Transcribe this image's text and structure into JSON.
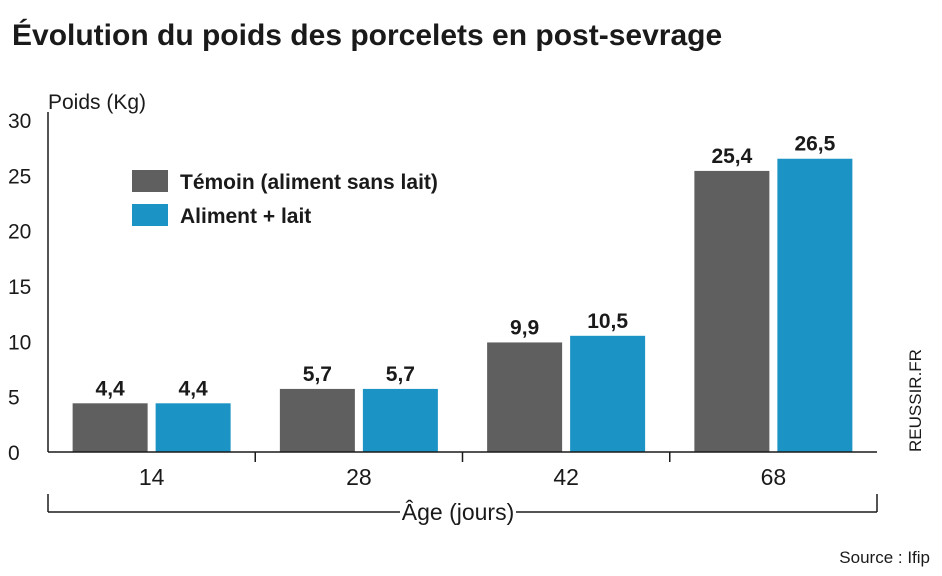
{
  "chart_data": {
    "type": "bar",
    "title": "Évolution du poids des porcelets en post-sevrage",
    "ylabel": "Poids (Kg)",
    "xlabel": "Âge (jours)",
    "categories": [
      "14",
      "28",
      "42",
      "68"
    ],
    "yticks": [
      "0",
      "5",
      "10",
      "15",
      "20",
      "25",
      "30"
    ],
    "ylim": [
      0,
      30
    ],
    "series": [
      {
        "name": "Témoin (aliment sans lait)",
        "values": [
          4.4,
          5.7,
          9.9,
          25.4
        ],
        "labels": [
          "4,4",
          "5,7",
          "9,9",
          "25,4"
        ],
        "color": "#5f5f5f"
      },
      {
        "name": "Aliment + lait",
        "values": [
          4.4,
          5.7,
          10.5,
          26.5
        ],
        "labels": [
          "4,4",
          "5,7",
          "10,5",
          "26,5"
        ],
        "color": "#1b93c4"
      }
    ],
    "legend_position": "top-left",
    "grid": false
  },
  "credit": "REUSSIR.FR",
  "source": "Source : Ifip"
}
